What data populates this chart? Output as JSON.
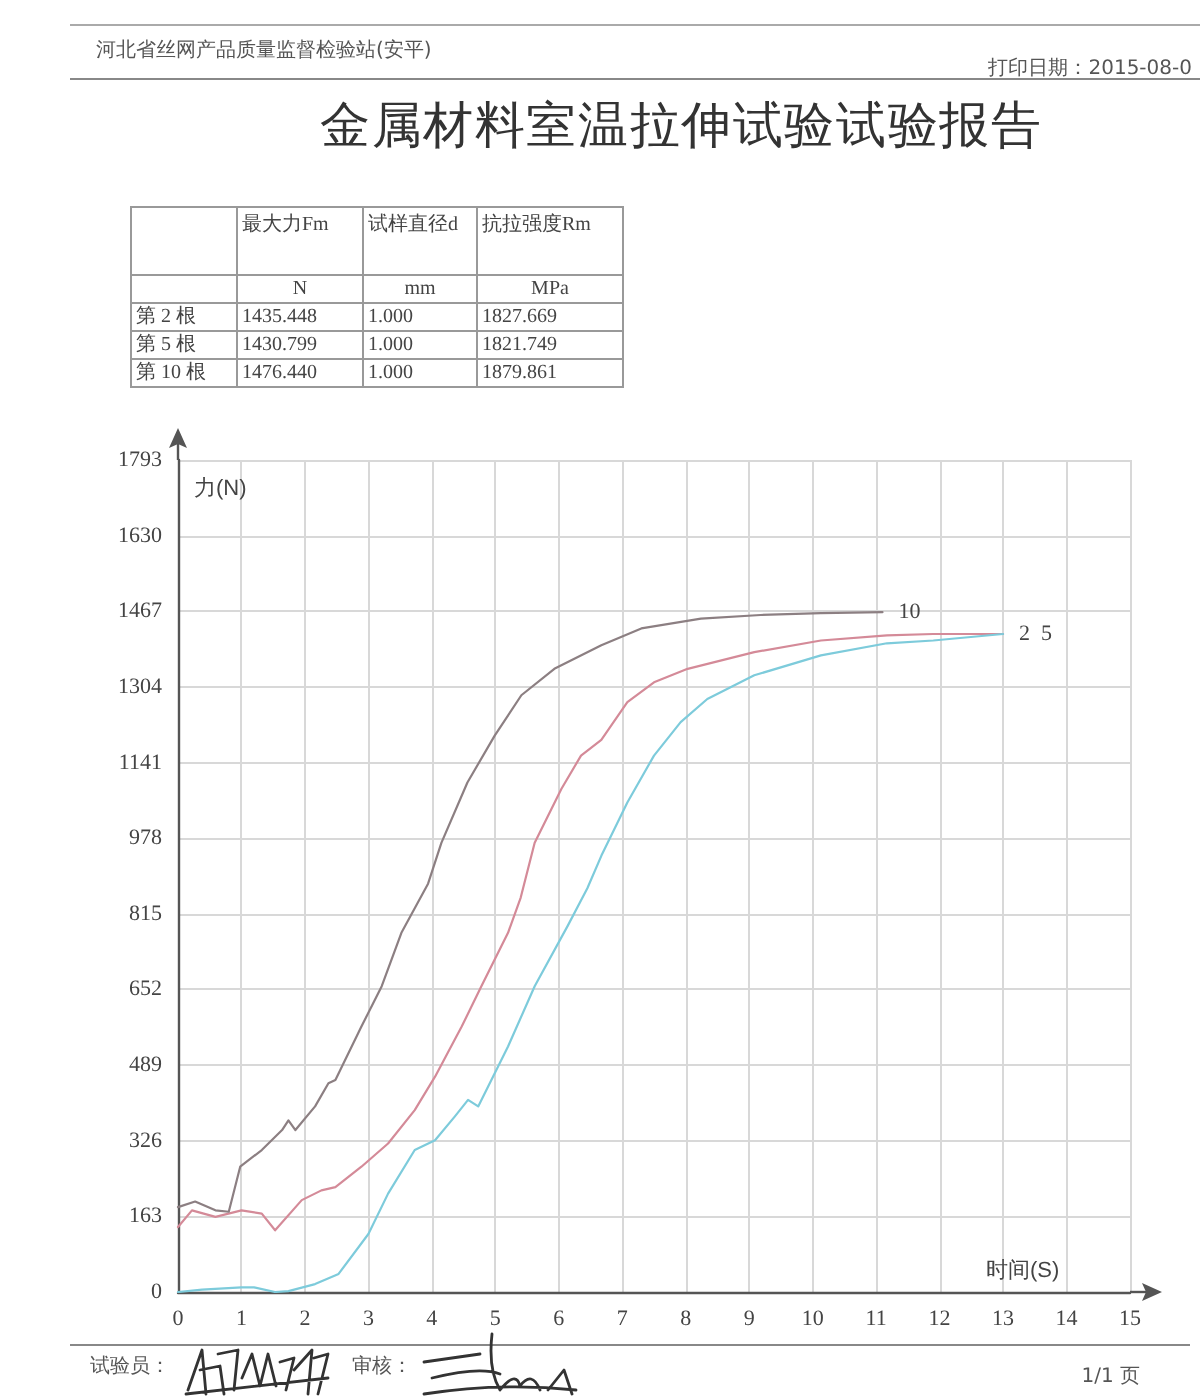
{
  "chart_data": [
    {
      "type": "other",
      "title": "金属材料室温拉伸试验试验报告",
      "annotations": [
        "河北省丝网产品质量监督检验站(安平)",
        "打印日期：2015-08-0"
      ],
      "categories": [
        "最大力Fm",
        "试样直径d",
        "抗拉强度Rm"
      ],
      "y_categories": [
        null,
        "第 2 根",
        "第 5 根",
        "第 10 根"
      ],
      "cell_labels": [
        [
          "N",
          "mm",
          "MPa"
        ],
        [
          "1435.448",
          "1.000",
          "1827.669"
        ],
        [
          "1430.799",
          "1.000",
          "1821.749"
        ],
        [
          "1476.440",
          "1.000",
          "1879.861"
        ]
      ]
    },
    {
      "type": "line",
      "xlabel": "时间(S)",
      "ylabel": "力(N)",
      "xlim": [
        0,
        15
      ],
      "xticks": [
        0,
        1,
        2,
        3,
        4,
        5,
        6,
        7,
        8,
        9,
        10,
        11,
        12,
        13,
        14,
        15
      ],
      "ylim": [
        0,
        1793
      ],
      "yticks": [
        0,
        163,
        326,
        489,
        652,
        815,
        978,
        1141,
        1304,
        1467,
        1630,
        1793
      ],
      "grid": true,
      "marker": "none",
      "line_style": "solid",
      "annotations": [
        "试验员：",
        "审核：",
        "1/1 页"
      ],
      "series": [
        {
          "name": "2",
          "color": "#d48a98",
          "x": [
            0,
            0.22,
            0.59,
            1.0,
            1.32,
            1.53,
            1.95,
            2.26,
            2.48,
            2.89,
            3.31,
            3.73,
            4.05,
            4.47,
            4.78,
            5.2,
            5.4,
            5.62,
            6.04,
            6.35,
            6.67,
            7.08,
            7.5,
            8.03,
            9.08,
            10.13,
            11.17,
            11.9,
            13.0
          ],
          "values": [
            140,
            176,
            162,
            176,
            169,
            133,
            198,
            219,
            226,
            270,
            320,
            392,
            464,
            572,
            659,
            774,
            850,
            968,
            1084,
            1156,
            1190,
            1271,
            1314,
            1343,
            1379,
            1404,
            1415,
            1418,
            1418
          ]
        },
        {
          "name": "5",
          "color": "#7dcbdb",
          "x": [
            0,
            0.38,
            1.0,
            1.2,
            1.53,
            1.74,
            2.16,
            2.53,
            3.0,
            3.31,
            3.73,
            4.05,
            4.36,
            4.57,
            4.73,
            5.2,
            5.62,
            6.14,
            6.45,
            6.67,
            7.08,
            7.5,
            7.92,
            8.34,
            9.08,
            10.13,
            11.17,
            11.9,
            13.0
          ],
          "values": [
            0,
            5,
            10,
            10,
            0,
            2,
            17,
            39,
            125,
            212,
            306,
            327,
            378,
            414,
            400,
            529,
            659,
            789,
            870,
            940,
            1055,
            1156,
            1228,
            1278,
            1329,
            1372,
            1398,
            1404,
            1418
          ]
        },
        {
          "name": "10",
          "color": "#8c7f82",
          "x": [
            0,
            0.27,
            0.59,
            0.8,
            0.98,
            1.32,
            1.64,
            1.74,
            1.85,
            2.16,
            2.37,
            2.48,
            2.89,
            3.21,
            3.52,
            3.94,
            4.15,
            4.56,
            4.99,
            5.41,
            5.93,
            6.67,
            7.3,
            8.24,
            9.18,
            10.13,
            11.1
          ],
          "values": [
            183,
            195,
            176,
            173,
            270,
            306,
            349,
            370,
            349,
            400,
            450,
            457,
            572,
            659,
            774,
            880,
            968,
            1098,
            1199,
            1286,
            1343,
            1394,
            1430,
            1451,
            1459,
            1463,
            1465
          ]
        }
      ]
    }
  ]
}
